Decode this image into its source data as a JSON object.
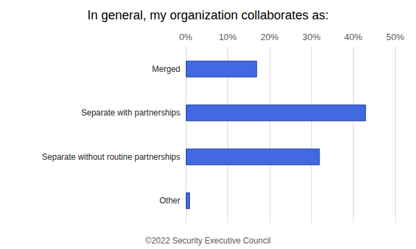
{
  "chart_data": {
    "type": "bar",
    "title": "In general, my organization collaborates as:",
    "caption": "©2022 Security Executive Council",
    "orientation": "horizontal",
    "categories": [
      "Merged",
      "Separate with partnerships",
      "Separate without routine partnerships",
      "Other"
    ],
    "values": [
      17,
      43,
      32,
      1
    ],
    "color": "#4169e1",
    "xlim": [
      0,
      50
    ],
    "xticks": [
      {
        "value": 0,
        "label": "0%"
      },
      {
        "value": 10,
        "label": "10%"
      },
      {
        "value": 20,
        "label": "20%"
      },
      {
        "value": 30,
        "label": "30%"
      },
      {
        "value": 40,
        "label": "40%"
      },
      {
        "value": 50,
        "label": "50%"
      }
    ],
    "grid": true
  }
}
